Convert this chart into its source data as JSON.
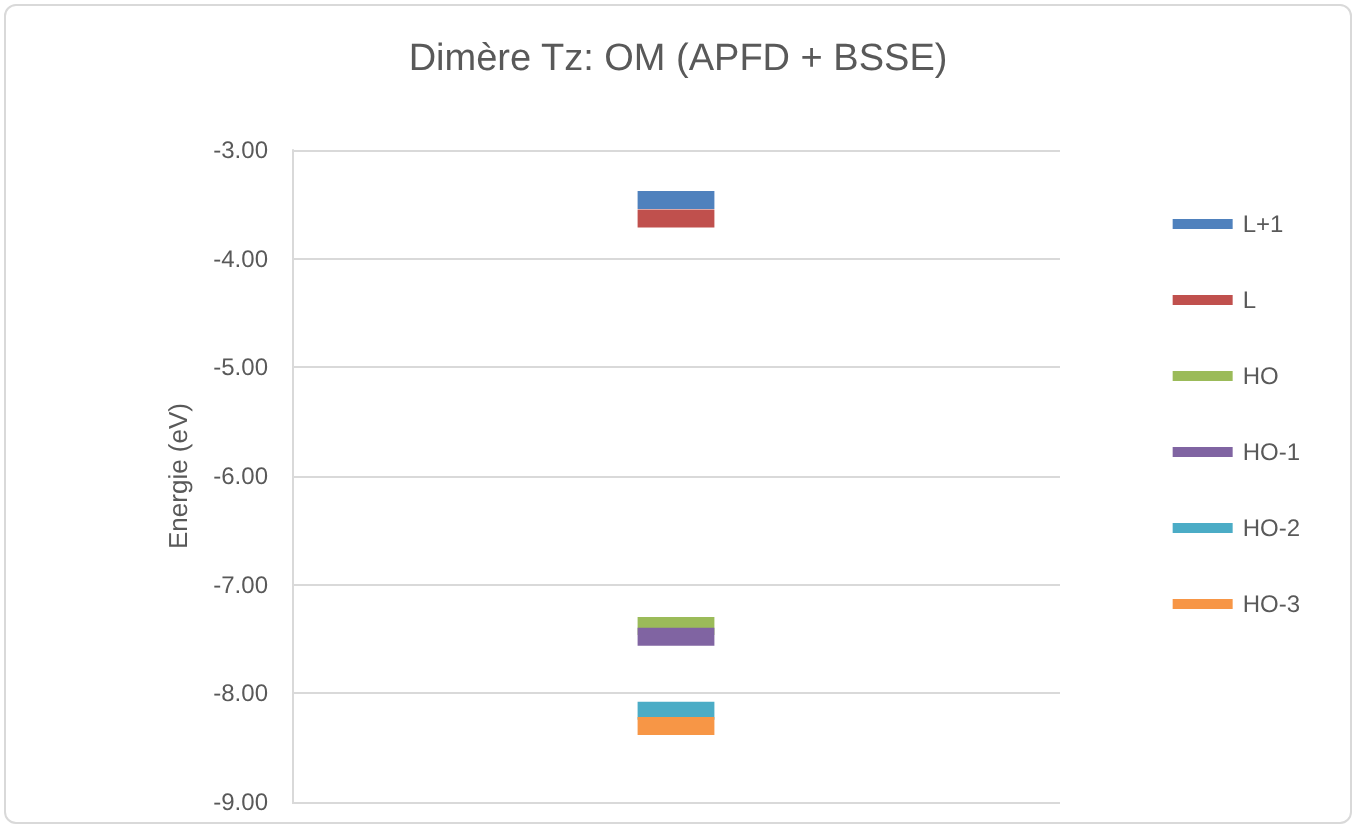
{
  "chart_data": {
    "type": "line",
    "title": "Dimère Tz: OM (APFD + BSSE)",
    "ylabel": "Energie (eV)",
    "categories": [
      null,
      null,
      null,
      null,
      null,
      null,
      null,
      null,
      null,
      null
    ],
    "series": [
      {
        "name": "L+1",
        "color": "#4f81bd",
        "values": [
          null,
          null,
          null,
          null,
          -3.46,
          -3.46,
          null,
          null,
          null,
          null
        ]
      },
      {
        "name": "L",
        "color": "#c0504d",
        "values": [
          null,
          null,
          null,
          null,
          -3.63,
          -3.63,
          null,
          null,
          null,
          null
        ]
      },
      {
        "name": "HO",
        "color": "#9bbb59",
        "values": [
          null,
          null,
          null,
          null,
          -7.38,
          -7.38,
          null,
          null,
          null,
          null
        ]
      },
      {
        "name": "HO-1",
        "color": "#8064a2",
        "values": [
          null,
          null,
          null,
          null,
          -7.48,
          -7.48,
          null,
          null,
          null,
          null
        ]
      },
      {
        "name": "HO-2",
        "color": "#4bacc6",
        "values": [
          null,
          null,
          null,
          null,
          -8.16,
          -8.16,
          null,
          null,
          null,
          null
        ]
      },
      {
        "name": "HO-3",
        "color": "#f79646",
        "values": [
          null,
          null,
          null,
          null,
          -8.3,
          -8.3,
          null,
          null,
          null,
          null
        ]
      }
    ],
    "ylim": [
      -9,
      -3
    ],
    "yticks": [
      {
        "value": -9,
        "label": "-9.00"
      },
      {
        "value": -8,
        "label": "-8.00"
      },
      {
        "value": -7,
        "label": "-7.00"
      },
      {
        "value": -6,
        "label": "-6.00"
      },
      {
        "value": -5,
        "label": "-5.00"
      },
      {
        "value": -4,
        "label": "-4.00"
      },
      {
        "value": -3,
        "label": "-3.00"
      }
    ],
    "grid": "y",
    "legend": "right",
    "marker": "none",
    "line_style": "solid"
  }
}
